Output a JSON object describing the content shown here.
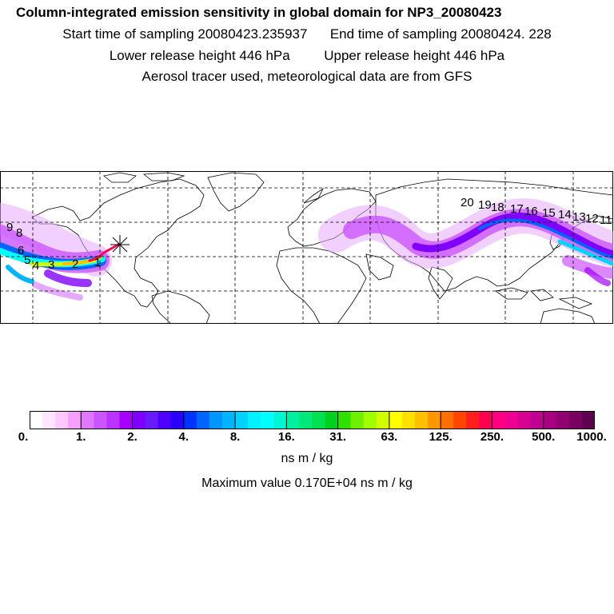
{
  "header": {
    "title": "Column-integrated emission sensitivity in global domain for NP3_20080423",
    "start_label": "Start time of sampling 20080423.235937",
    "end_label": "End time of sampling 20080424.   228",
    "lower_label": "Lower release height  446 hPa",
    "upper_label": "Upper release height  446 hPa",
    "info_line": "Aerosol tracer used, meteorological data are from GFS"
  },
  "colorbar": {
    "tick_labels": [
      "0.",
      "1.",
      "2.",
      "4.",
      "8.",
      "16.",
      "31.",
      "63.",
      "125.",
      "250.",
      "500.",
      "1000."
    ],
    "colors": [
      "#ffffff",
      "#ffe6ff",
      "#ffc8ff",
      "#f5a0ff",
      "#e078ff",
      "#cc55ff",
      "#bb33ff",
      "#a500ff",
      "#8000ff",
      "#6a1aff",
      "#4d00ff",
      "#2a00ff",
      "#0032ff",
      "#0064ff",
      "#0096ff",
      "#00b4ff",
      "#00d2ff",
      "#00f0ff",
      "#00ffff",
      "#00f5d5",
      "#00f0a0",
      "#00e878",
      "#00e050",
      "#00d020",
      "#30e000",
      "#70f000",
      "#a0ff00",
      "#d0ff00",
      "#ffff00",
      "#ffe000",
      "#ffc000",
      "#ff9600",
      "#ff6e00",
      "#ff4600",
      "#ff1e1e",
      "#ff0050",
      "#ff0080",
      "#f00090",
      "#d80090",
      "#c00090",
      "#a80080",
      "#900070",
      "#780060",
      "#600050"
    ],
    "units": "ns m / kg",
    "max_value_text": "Maximum value  0.170E+04 ns m / kg"
  },
  "map": {
    "trajectory_labels": [
      "1",
      "2",
      "3",
      "4",
      "5",
      "6",
      "8",
      "9",
      "20",
      "19",
      "18",
      "17",
      "16",
      "15",
      "14",
      "13",
      "12",
      "11"
    ],
    "release_marker": "release-point-asterisk"
  }
}
